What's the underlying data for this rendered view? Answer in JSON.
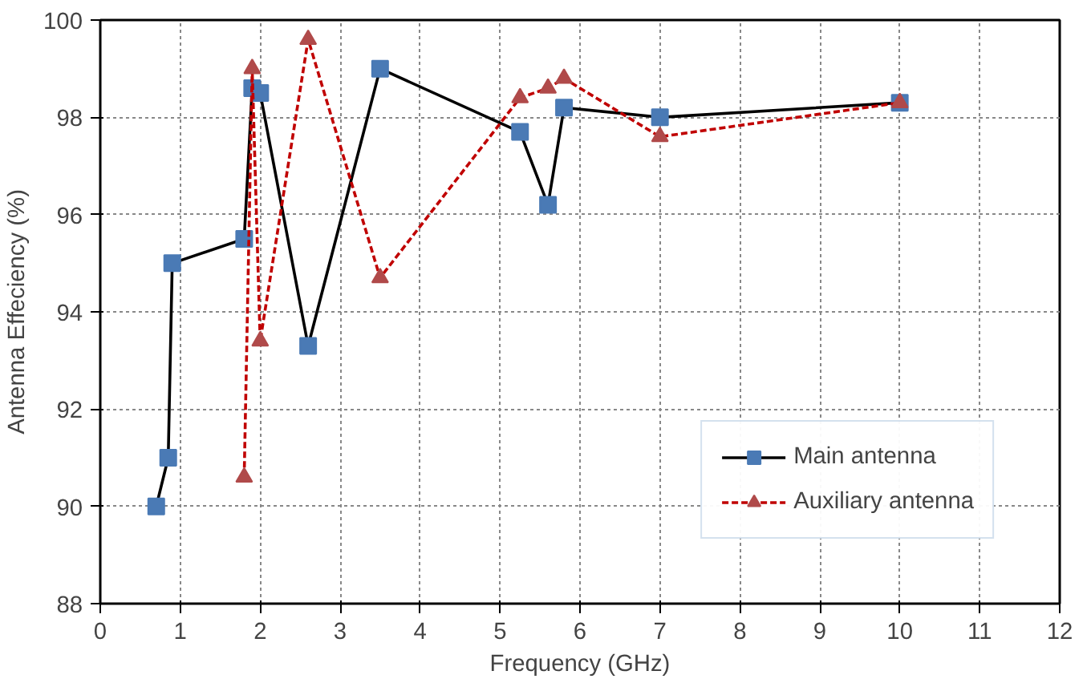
{
  "chart_data": {
    "type": "line",
    "xlabel": "Frequency (GHz)",
    "ylabel": "Antenna Effeciency (%)",
    "xlim": [
      0,
      12
    ],
    "xticks": [
      0,
      1,
      2,
      3,
      4,
      5,
      6,
      7,
      8,
      9,
      10,
      11,
      12
    ],
    "ylim": [
      88,
      100
    ],
    "yticks": [
      88,
      90,
      92,
      94,
      96,
      98,
      100
    ],
    "grid": true,
    "legend": "bottom right",
    "series": [
      {
        "name": "Main antenna",
        "color": "#000000",
        "marker": "square",
        "line_style": "solid",
        "x": [
          0.7,
          0.85,
          0.9,
          1.8,
          1.9,
          2.0,
          2.6,
          3.5,
          5.25,
          5.6,
          5.8,
          7,
          10
        ],
        "values": [
          90.0,
          91.0,
          95.0,
          95.5,
          98.6,
          98.5,
          93.3,
          99.0,
          97.7,
          96.2,
          98.2,
          98.0,
          98.3
        ]
      },
      {
        "name": "Auxiliary antenna",
        "color": "#c00000",
        "marker": "triangle",
        "line_style": "dashed",
        "x": [
          1.8,
          1.9,
          2.0,
          2.6,
          3.5,
          5.25,
          5.6,
          5.8,
          7,
          10
        ],
        "values": [
          90.6,
          99.0,
          93.4,
          99.6,
          94.7,
          98.4,
          98.6,
          98.8,
          97.6,
          98.3
        ]
      }
    ]
  }
}
